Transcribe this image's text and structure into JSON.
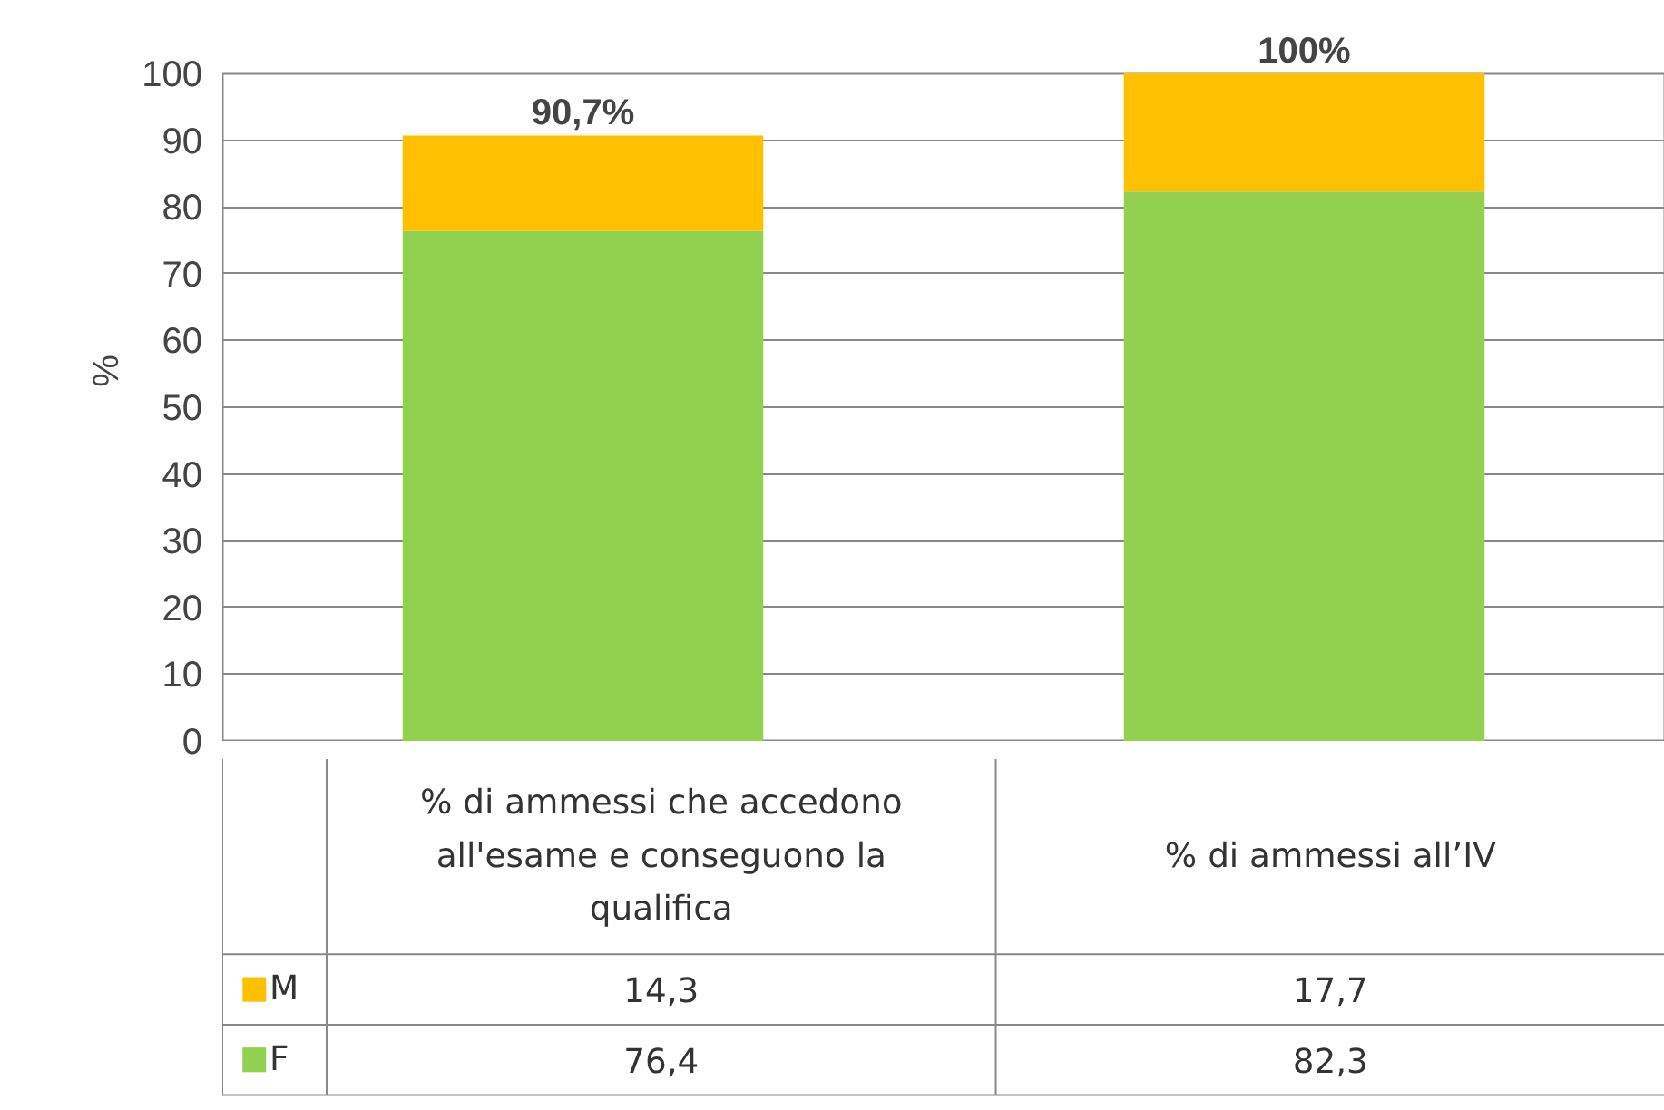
{
  "chart_data": {
    "type": "bar",
    "stacked": true,
    "ylabel": "%",
    "categories": [
      "% di ammessi che accedono all'esame e conseguono la qualifica",
      "% di ammessi all’IV"
    ],
    "series": [
      {
        "name": "F",
        "color": "#92d050",
        "values": [
          76.4,
          82.3
        ],
        "value_labels": [
          "76,4",
          "82,3"
        ]
      },
      {
        "name": "M",
        "color": "#ffc000",
        "values": [
          14.3,
          17.7
        ],
        "value_labels": [
          "14,3",
          "17,7"
        ]
      }
    ],
    "totals": [
      "90,7%",
      "100%"
    ],
    "ylim": [
      0,
      100
    ],
    "yticks": [
      0,
      10,
      20,
      30,
      40,
      50,
      60,
      70,
      80,
      90,
      100
    ],
    "grid": "y",
    "legend": "bottom"
  }
}
